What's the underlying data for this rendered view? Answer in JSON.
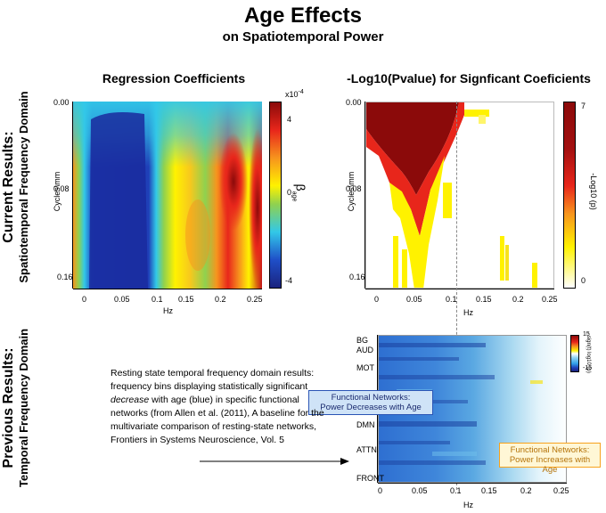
{
  "title": "Age Effects",
  "subtitle": "on Spatiotemporal Power",
  "row_labels": {
    "current_main": "Current Results:",
    "current_sub": "Spatiotemporal Frequency Domain",
    "previous_main": "Previous Results:",
    "previous_sub": "Temporal Frequency Domain"
  },
  "panels": {
    "regression": {
      "title": "Regression Coefficients",
      "ylabel": "Cycles\\mm",
      "xlabel": "Hz",
      "yticks": [
        "0.00",
        "0.08",
        "0.16"
      ],
      "xticks": [
        "0",
        "0.05",
        "0.1",
        "0.15",
        "0.2",
        "0.25"
      ],
      "colorbar_ticks": [
        "4",
        "0",
        "-4"
      ],
      "colorbar_exponent": "x10",
      "colorbar_exponent_sup": "-4",
      "colorbar_label": "β",
      "colorbar_label_sub": "age"
    },
    "pvalue": {
      "title": "-Log10(Pvalue) for Signficant Coeficients",
      "ylabel": "Cycles\\mm",
      "xlabel": "Hz",
      "yticks": [
        "0.00",
        "0.08",
        "0.16"
      ],
      "xticks": [
        "0",
        "0.05",
        "0.1",
        "0.15",
        "0.2",
        "0.25"
      ],
      "colorbar_ticks": [
        "7",
        "0"
      ],
      "colorbar_label": "-Log10 (p)"
    },
    "networks": {
      "xlabel": "Hz",
      "xticks": [
        "0",
        "0.05",
        "0.1",
        "0.15",
        "0.2",
        "0.25"
      ],
      "network_labels": [
        "BG",
        "AUD",
        "MOT",
        "DMN",
        "ATTN",
        "FRONT"
      ],
      "colorbar_ticks": [
        "15",
        "-15"
      ],
      "colorbar_label": "- sign(t) log10 (p)",
      "callout_decrease": [
        "Functional Networks:",
        "Power Decreases with Age"
      ],
      "callout_increase": [
        "Functional Networks:",
        "Power Increases with Age"
      ]
    }
  },
  "description": {
    "line1": "Resting state temporal frequency domain results:",
    "line2": "frequency bins displaying statistically significant",
    "line3_italic": "decrease",
    "line3_rest": " with age (blue) in specific functional",
    "line4": "networks (from Allen et al. (2011), A baseline for the",
    "line5": "multivariate comparison of resting-state networks,",
    "line6": "Frontiers in Systems Neuroscience, Vol. 5"
  },
  "colors": {
    "dark_red": "#8b0a0a",
    "red": "#e8261b",
    "orange": "#f7941d",
    "yellow": "#fff200",
    "green": "#8fd14f",
    "cyan": "#32c8e8",
    "blue": "#1f4fc8",
    "dark_blue": "#1a237e",
    "callout_blue_bg": "#cfe3f7",
    "callout_blue_border": "#2b55b5",
    "callout_orange_bg": "#fff7d6",
    "callout_orange_border": "#f7a21d"
  }
}
